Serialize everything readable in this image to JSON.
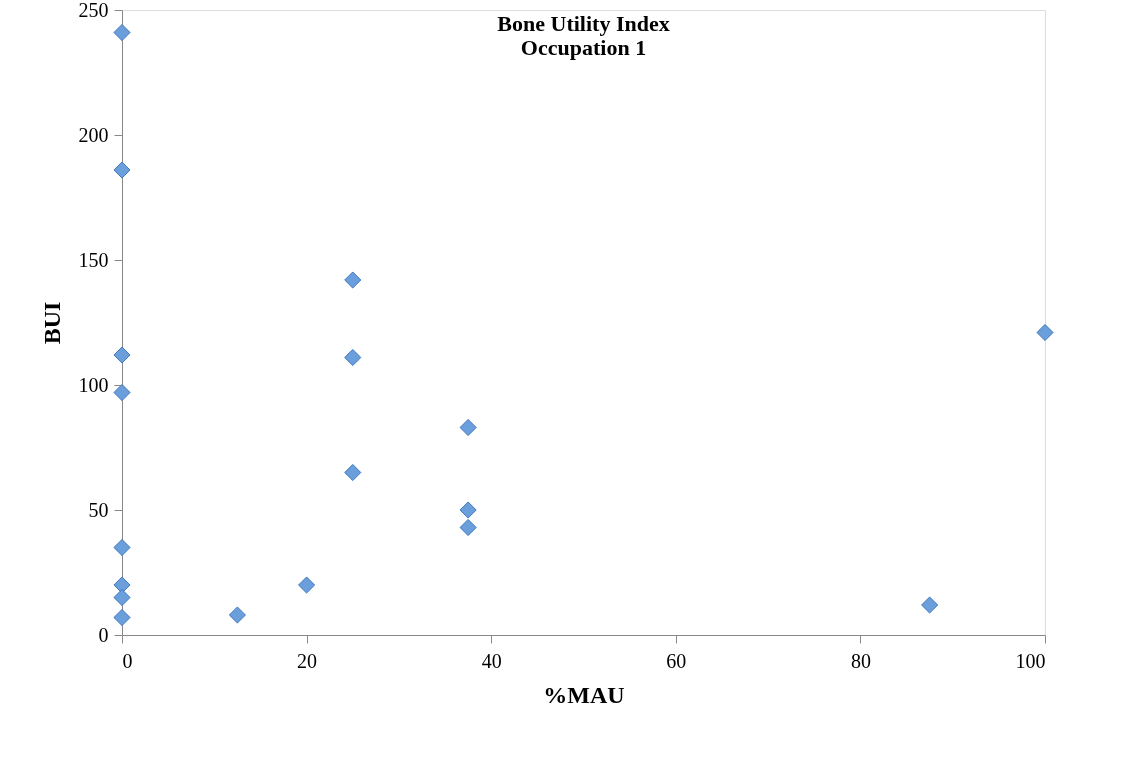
{
  "chart_data": {
    "type": "scatter",
    "title": "Bone Utility Index\nOccupation 1",
    "xlabel": "%MAU",
    "ylabel": "BUI",
    "x": [
      0,
      0,
      0,
      0,
      0,
      0,
      0,
      0,
      12.5,
      20,
      25,
      25,
      25,
      37.5,
      37.5,
      37.5,
      87.5,
      100
    ],
    "series": [
      {
        "color": "#6a9fdc",
        "values": [
          241,
          186,
          112,
          97,
          35,
          20,
          15,
          7,
          8,
          20,
          142,
          111,
          65,
          83,
          50,
          43,
          12,
          121
        ]
      }
    ],
    "xlim": [
      0,
      100
    ],
    "xticks": [
      0,
      20,
      40,
      60,
      80,
      100
    ],
    "ylim": [
      0,
      250
    ],
    "yticks": [
      0,
      50,
      100,
      150,
      200,
      250
    ],
    "marker": "diamond",
    "grid": false
  }
}
